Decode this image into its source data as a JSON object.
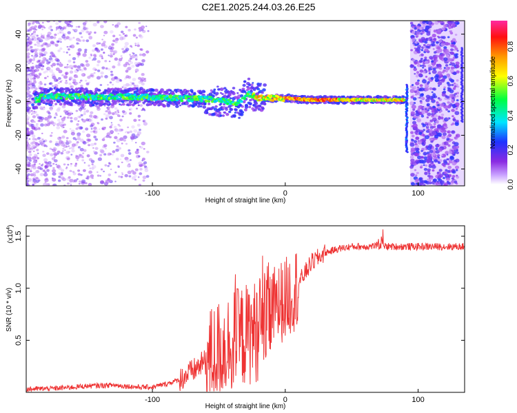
{
  "title": "C2E1.2025.244.03.26.E25",
  "chart_data": [
    {
      "type": "heatmap",
      "xlabel": "Height of straight line (km)",
      "ylabel": "Frequency (Hz)",
      "xlim": [
        -195,
        135
      ],
      "ylim": [
        -50,
        48
      ],
      "x_ticks": [
        -100,
        0,
        100
      ],
      "y_ticks": [
        -40,
        -20,
        0,
        20,
        40
      ],
      "colorbar": {
        "label": "Normalized spectral amplitude",
        "range": [
          0,
          0.95
        ],
        "ticks": [
          0.0,
          0.2,
          0.4,
          0.6,
          0.8
        ],
        "colors": [
          "#ffffff",
          "#9b30ff",
          "#2020ff",
          "#00e5ff",
          "#00ff40",
          "#ffff00",
          "#ff9900",
          "#ff0000",
          "#ff20a0"
        ]
      },
      "ridge": {
        "x": [
          -185,
          -160,
          -140,
          -120,
          -100,
          -80,
          -60,
          -45,
          -35,
          -28,
          -20,
          -10,
          0,
          20,
          40,
          60,
          80,
          90
        ],
        "frequency": [
          3,
          3,
          2.5,
          3,
          2.5,
          2,
          1.5,
          0,
          -1,
          5,
          2,
          2,
          2,
          1,
          1,
          1,
          1,
          1
        ]
      }
    },
    {
      "type": "line",
      "xlabel": "Height of straight line (km)",
      "ylabel": "SNR (10 * v/v)",
      "y_multiplier": "(x10",
      "y_multiplier_exp": "4",
      "y_multiplier_close": ")",
      "xlim": [
        -195,
        135
      ],
      "ylim": [
        0,
        16000
      ],
      "x_ticks": [
        -100,
        0,
        100
      ],
      "y_ticks": [
        5000,
        10000,
        15000
      ],
      "y_tick_labels": [
        "0.5",
        "1.0",
        "1.5"
      ],
      "color": "#ee3333",
      "series": [
        {
          "x": [
            -195,
            -170,
            -150,
            -130,
            -120,
            -110,
            -100,
            -90,
            -80,
            -70,
            -60,
            -50,
            -40,
            -30,
            -20,
            -15,
            -10,
            -5,
            0,
            5,
            10,
            20,
            30,
            40,
            50,
            60,
            70,
            80,
            90,
            100,
            110,
            120,
            135
          ],
          "y": [
            300,
            400,
            600,
            700,
            600,
            500,
            500,
            800,
            1200,
            2000,
            3000,
            4000,
            5000,
            5500,
            6000,
            7000,
            8000,
            8500,
            9000,
            9500,
            10500,
            12500,
            13400,
            13800,
            14000,
            14000,
            14100,
            14000,
            14000,
            14000,
            14000,
            14000,
            14000
          ]
        }
      ]
    }
  ]
}
